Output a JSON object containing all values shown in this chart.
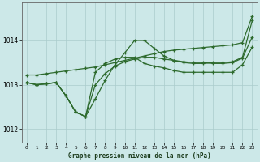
{
  "title": "Graphe pression niveau de la mer (hPa)",
  "bg_color": "#cce8e8",
  "grid_color": "#aacccc",
  "line_color": "#2d6a2d",
  "xlim": [
    -0.5,
    23.5
  ],
  "ylim": [
    1011.7,
    1014.85
  ],
  "yticks": [
    1012,
    1013,
    1014
  ],
  "xticks": [
    0,
    1,
    2,
    3,
    4,
    5,
    6,
    7,
    8,
    9,
    10,
    11,
    12,
    13,
    14,
    15,
    16,
    17,
    18,
    19,
    20,
    21,
    22,
    23
  ],
  "series": [
    [
      1013.22,
      1013.22,
      1013.25,
      1013.28,
      1013.31,
      1013.34,
      1013.37,
      1013.4,
      1013.45,
      1013.5,
      1013.55,
      1013.6,
      1013.65,
      1013.7,
      1013.75,
      1013.78,
      1013.8,
      1013.82,
      1013.84,
      1013.86,
      1013.88,
      1013.9,
      1013.95,
      1014.55
    ],
    [
      1013.05,
      1013.0,
      1013.02,
      1013.05,
      1012.75,
      1012.38,
      1012.28,
      1012.68,
      1013.1,
      1013.45,
      1013.72,
      1014.0,
      1014.0,
      1013.82,
      1013.65,
      1013.55,
      1013.5,
      1013.48,
      1013.48,
      1013.5,
      1013.5,
      1013.52,
      1013.62,
      1014.45
    ],
    [
      1013.05,
      1013.0,
      1013.02,
      1013.05,
      1012.75,
      1012.38,
      1012.28,
      1013.0,
      1013.25,
      1013.42,
      1013.52,
      1013.58,
      1013.62,
      1013.62,
      1013.58,
      1013.55,
      1013.52,
      1013.5,
      1013.5,
      1013.48,
      1013.48,
      1013.5,
      1013.6,
      1014.08
    ],
    [
      1013.05,
      1013.0,
      1013.02,
      1013.05,
      1012.75,
      1012.38,
      1012.28,
      1013.28,
      1013.48,
      1013.58,
      1013.62,
      1013.62,
      1013.48,
      1013.42,
      1013.38,
      1013.32,
      1013.28,
      1013.28,
      1013.28,
      1013.28,
      1013.28,
      1013.28,
      1013.45,
      1013.85
    ]
  ]
}
